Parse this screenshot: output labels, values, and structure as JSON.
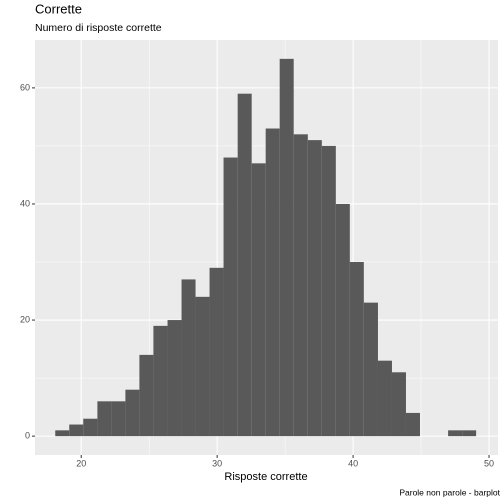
{
  "chart_data": {
    "type": "histogram",
    "title": "Corrette",
    "subtitle": "Numero di risposte corrette",
    "x_label": "Risposte corrette",
    "caption": "Parole non parole - barplot",
    "bins": [
      18.09,
      19.12,
      20.15,
      21.19,
      22.22,
      23.25,
      24.28,
      25.31,
      26.35,
      27.38,
      28.41,
      29.44,
      30.47,
      31.51,
      32.54,
      33.57,
      34.6,
      35.63,
      36.67,
      37.7,
      38.73,
      39.76,
      40.79,
      41.83,
      42.86,
      43.89,
      44.92,
      45.95,
      46.99,
      48.02,
      49.05
    ],
    "values": [
      1,
      2,
      3,
      6,
      6,
      8,
      14,
      19,
      20,
      27,
      24,
      29,
      48,
      59,
      47,
      53,
      65,
      52,
      51,
      50,
      40,
      30,
      23,
      13,
      11,
      4,
      0,
      0,
      1,
      1
    ],
    "color": "#595959",
    "xlim": [
      16.6,
      50.66
    ],
    "xticks": [
      20,
      30,
      40,
      50
    ],
    "x_minor_breaks": [
      25,
      35,
      45
    ],
    "ylim": [
      -3.25,
      68.25
    ],
    "yticks": [
      0,
      20,
      40,
      60
    ],
    "y_minor_breaks": [
      10,
      30,
      50
    ],
    "grid": true
  }
}
